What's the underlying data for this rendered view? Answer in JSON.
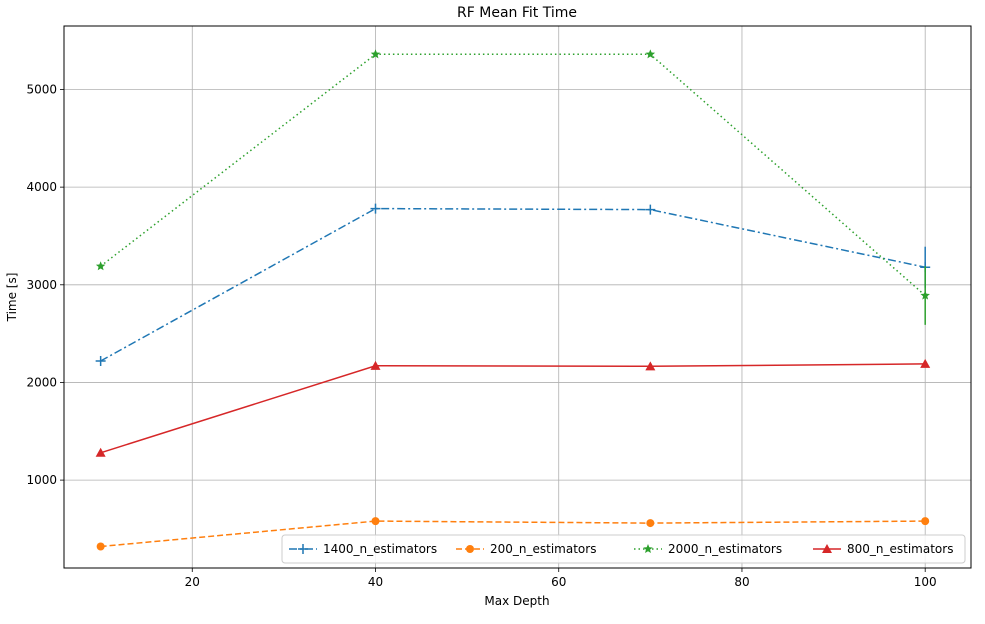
{
  "chart_data": {
    "type": "line",
    "title": "RF Mean Fit Time",
    "xlabel": "Max Depth",
    "ylabel": "Time [s]",
    "xlim": [
      6,
      105
    ],
    "ylim": [
      100,
      5650
    ],
    "xticks": [
      20,
      40,
      60,
      80,
      100
    ],
    "yticks": [
      1000,
      2000,
      3000,
      4000,
      5000
    ],
    "grid": true,
    "legend_position": "lower-right",
    "x": [
      10,
      40,
      70,
      100
    ],
    "series": [
      {
        "name": "1400_n_estimators",
        "values": [
          2220,
          3780,
          3770,
          3180
        ],
        "color": "#1f77b4",
        "linestyle": "dashdot",
        "marker": "plus",
        "error": [
          0,
          0,
          0,
          210
        ]
      },
      {
        "name": "200_n_estimators",
        "values": [
          320,
          580,
          560,
          580
        ],
        "color": "#ff7f0e",
        "linestyle": "dashed",
        "marker": "circle",
        "error": [
          0,
          0,
          0,
          0
        ]
      },
      {
        "name": "2000_n_estimators",
        "values": [
          3190,
          5360,
          5360,
          2890
        ],
        "color": "#2ca02c",
        "linestyle": "dotted",
        "marker": "star",
        "error": [
          0,
          0,
          0,
          300
        ]
      },
      {
        "name": "800_n_estimators",
        "values": [
          1280,
          2170,
          2165,
          2190
        ],
        "color": "#d62728",
        "linestyle": "solid",
        "marker": "triangle",
        "error": [
          0,
          0,
          0,
          0
        ]
      }
    ]
  }
}
